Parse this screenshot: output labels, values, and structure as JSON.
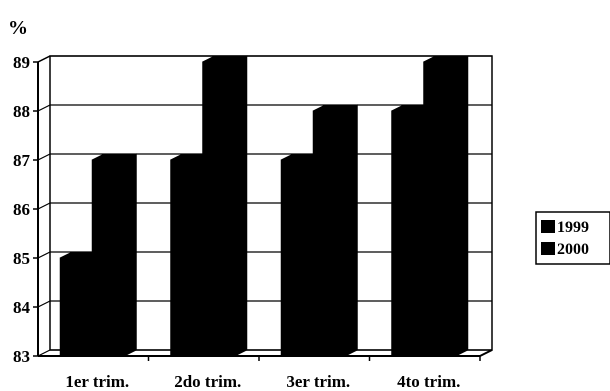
{
  "chart_data": {
    "type": "bar",
    "style": "3d",
    "unit_label": "%",
    "categories": [
      "1er trim.",
      "2do trim.",
      "3er trim.",
      "4to trim."
    ],
    "series": [
      {
        "name": "1999",
        "values": [
          85,
          87,
          87,
          88
        ]
      },
      {
        "name": "2000",
        "values": [
          87,
          89,
          88,
          89
        ]
      }
    ],
    "ylim": [
      83,
      89
    ],
    "yticks": [
      "83",
      "84",
      "85",
      "86",
      "87",
      "88",
      "89"
    ],
    "grid": true,
    "legend": "right",
    "colors": {
      "bar": "#000000",
      "grid": "#000000",
      "background": "#ffffff"
    }
  }
}
